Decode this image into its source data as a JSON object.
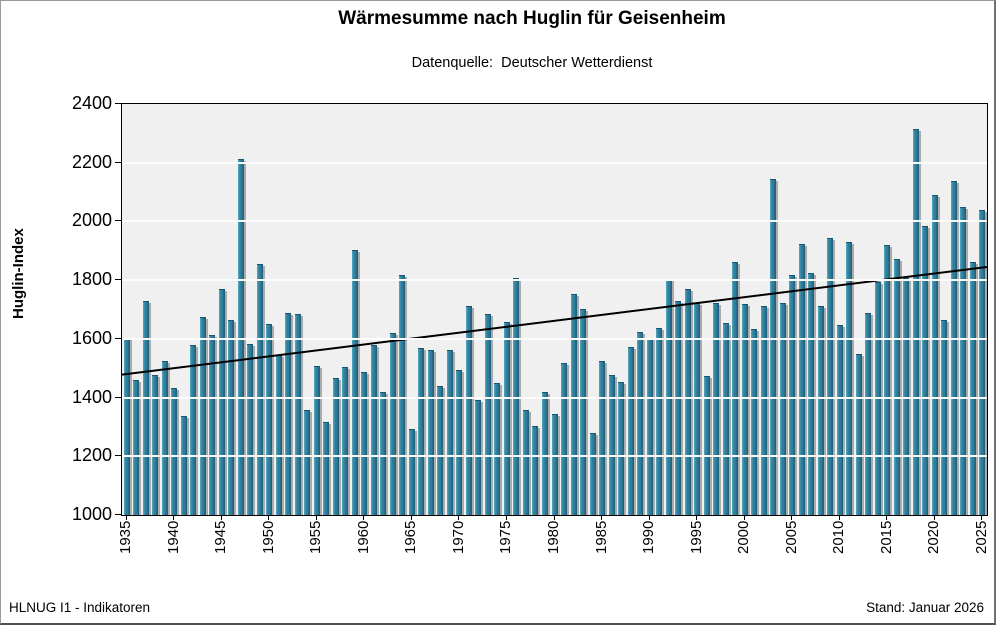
{
  "header": {
    "title": "Wärmesumme nach Huglin für Geisenheim",
    "subtitle": "Datenquelle:  Deutscher Wetterdienst"
  },
  "footer": {
    "left": "HLNUG I1 - Indikatoren",
    "right": "Stand: Januar 2026"
  },
  "chart_data": {
    "type": "bar",
    "title": "Wärmesumme nach Huglin für Geisenheim",
    "subtitle": "Datenquelle:  Deutscher Wetterdienst",
    "xlabel": "",
    "ylabel": "Huglin-Index",
    "ylim": [
      1000,
      2400
    ],
    "yticks": [
      1000,
      1200,
      1400,
      1600,
      1800,
      2000,
      2200,
      2400
    ],
    "xticks": [
      1935,
      1940,
      1945,
      1950,
      1955,
      1960,
      1965,
      1970,
      1975,
      1980,
      1985,
      1990,
      1995,
      2000,
      2005,
      2010,
      2015,
      2020,
      2025
    ],
    "grid": true,
    "legend": false,
    "year_start": 1935,
    "categories": [
      1935,
      1936,
      1937,
      1938,
      1939,
      1940,
      1941,
      1942,
      1943,
      1944,
      1945,
      1946,
      1947,
      1948,
      1949,
      1950,
      1951,
      1952,
      1953,
      1954,
      1955,
      1956,
      1957,
      1958,
      1959,
      1960,
      1961,
      1962,
      1963,
      1964,
      1965,
      1966,
      1967,
      1968,
      1969,
      1970,
      1971,
      1972,
      1973,
      1974,
      1975,
      1976,
      1977,
      1978,
      1979,
      1980,
      1981,
      1982,
      1983,
      1984,
      1985,
      1986,
      1987,
      1988,
      1989,
      1990,
      1991,
      1992,
      1993,
      1994,
      1995,
      1996,
      1997,
      1998,
      1999,
      2000,
      2001,
      2002,
      2003,
      2004,
      2005,
      2006,
      2007,
      2008,
      2009,
      2010,
      2011,
      2012,
      2013,
      2014,
      2015,
      2016,
      2017,
      2018,
      2019,
      2020,
      2021,
      2022,
      2023,
      2024,
      2025
    ],
    "values": [
      1600,
      1455,
      1725,
      1475,
      1520,
      1430,
      1335,
      1575,
      1670,
      1610,
      1765,
      1660,
      2210,
      1580,
      1850,
      1648,
      1540,
      1685,
      1680,
      1355,
      1505,
      1315,
      1465,
      1500,
      1900,
      1485,
      1575,
      1415,
      1615,
      1815,
      1290,
      1565,
      1560,
      1435,
      1560,
      1490,
      1710,
      1390,
      1680,
      1445,
      1655,
      1805,
      1355,
      1300,
      1415,
      1340,
      1515,
      1750,
      1700,
      1275,
      1520,
      1475,
      1450,
      1570,
      1620,
      1600,
      1635,
      1800,
      1725,
      1765,
      1720,
      1470,
      1720,
      1650,
      1860,
      1715,
      1630,
      1710,
      2140,
      1720,
      1815,
      1920,
      1820,
      1710,
      1940,
      1645,
      1925,
      1545,
      1685,
      1790,
      1915,
      1870,
      1805,
      2310,
      1980,
      2085,
      1660,
      2135,
      2045,
      1860,
      2035
    ],
    "trend": {
      "x1": 1935,
      "y1": 1478,
      "x2": 2025,
      "y2": 1845
    },
    "colors": {
      "bar": "#2f7f9c",
      "bar_light": "#4ea0b8",
      "bar_dark": "#1d5e7a",
      "bar_shadow": "#ababab",
      "plot_bg": "#f0f0f0",
      "gridline": "#fdfdfd",
      "trend": "#000000",
      "axis": "#000000"
    }
  }
}
